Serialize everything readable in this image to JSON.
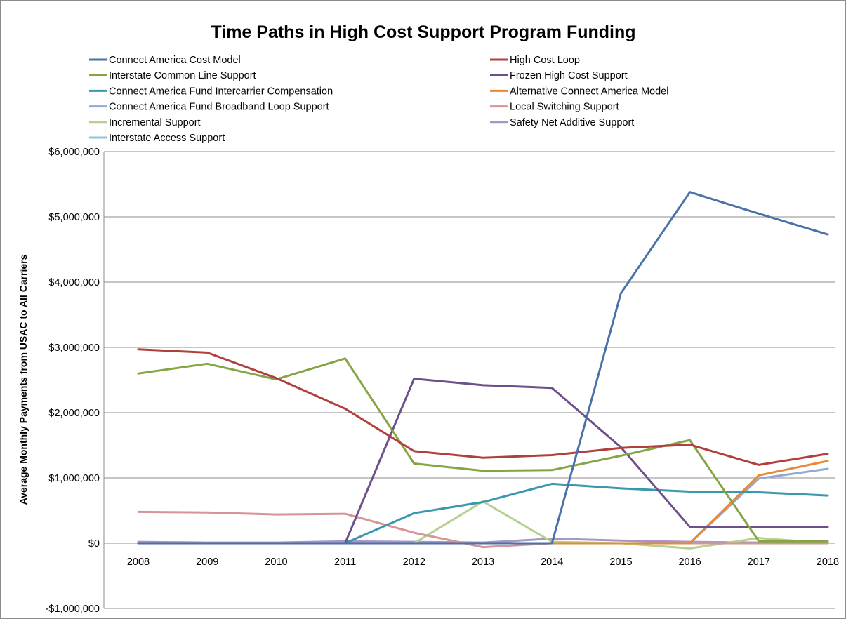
{
  "chart_data": {
    "type": "line",
    "title": "Time Paths in High Cost Support Program Funding",
    "xlabel": "",
    "ylabel": "Average Monthly Payments from USAC to All Carriers",
    "x": [
      "2008",
      "2009",
      "2010",
      "2011",
      "2012",
      "2013",
      "2014",
      "2015",
      "2016",
      "2017",
      "2018"
    ],
    "ylim": [
      -1000000,
      6000000
    ],
    "yticks": [
      -1000000,
      0,
      1000000,
      2000000,
      3000000,
      4000000,
      5000000,
      6000000
    ],
    "ytick_labels": [
      "-$1,000,000",
      "$0",
      "$1,000,000",
      "$2,000,000",
      "$3,000,000",
      "$4,000,000",
      "$5,000,000",
      "$6,000,000"
    ],
    "grid": "horizontal",
    "legend_position": "top",
    "series": [
      {
        "name": "Connect America Cost Model",
        "color": "#4a72a8",
        "values": [
          0,
          0,
          0,
          0,
          0,
          0,
          0,
          3830000,
          5380000,
          5050000,
          4730000
        ]
      },
      {
        "name": "High Cost Loop",
        "color": "#b0403e",
        "values": [
          2970000,
          2920000,
          2530000,
          2060000,
          1410000,
          1310000,
          1350000,
          1460000,
          1510000,
          1200000,
          1370000
        ]
      },
      {
        "name": "Interstate Common Line Support",
        "color": "#85a544",
        "values": [
          2600000,
          2750000,
          2510000,
          2830000,
          1220000,
          1110000,
          1120000,
          1340000,
          1580000,
          30000,
          30000
        ]
      },
      {
        "name": "Frozen High Cost Support",
        "color": "#6e4f8c",
        "values": [
          0,
          0,
          0,
          0,
          2520000,
          2420000,
          2380000,
          1470000,
          250000,
          250000,
          250000
        ]
      },
      {
        "name": "Connect America Fund Intercarrier Compensation",
        "color": "#3b97ae",
        "values": [
          0,
          0,
          0,
          0,
          460000,
          630000,
          910000,
          840000,
          790000,
          780000,
          730000
        ]
      },
      {
        "name": "Alternative Connect America Model",
        "color": "#e68a36",
        "values": [
          0,
          0,
          0,
          0,
          0,
          0,
          0,
          0,
          0,
          1040000,
          1260000
        ]
      },
      {
        "name": "Connect America Fund Broadband Loop Support",
        "color": "#92a9d6",
        "values": [
          0,
          0,
          0,
          0,
          0,
          0,
          0,
          0,
          0,
          990000,
          1140000
        ]
      },
      {
        "name": "Local Switching Support",
        "color": "#d69593",
        "values": [
          480000,
          470000,
          440000,
          450000,
          160000,
          -60000,
          0,
          0,
          0,
          0,
          0
        ]
      },
      {
        "name": "Incremental Support",
        "color": "#b6d08d",
        "values": [
          0,
          0,
          0,
          0,
          0,
          640000,
          20000,
          0,
          -80000,
          80000,
          0
        ]
      },
      {
        "name": "Safety Net Additive Support",
        "color": "#a697c4",
        "values": [
          20000,
          10000,
          10000,
          30000,
          20000,
          10000,
          70000,
          40000,
          20000,
          10000,
          10000
        ]
      },
      {
        "name": "Interstate Access Support",
        "color": "#8ec5da",
        "values": [
          0,
          0,
          0,
          0,
          0,
          0,
          0,
          0,
          0,
          0,
          0
        ]
      }
    ]
  }
}
